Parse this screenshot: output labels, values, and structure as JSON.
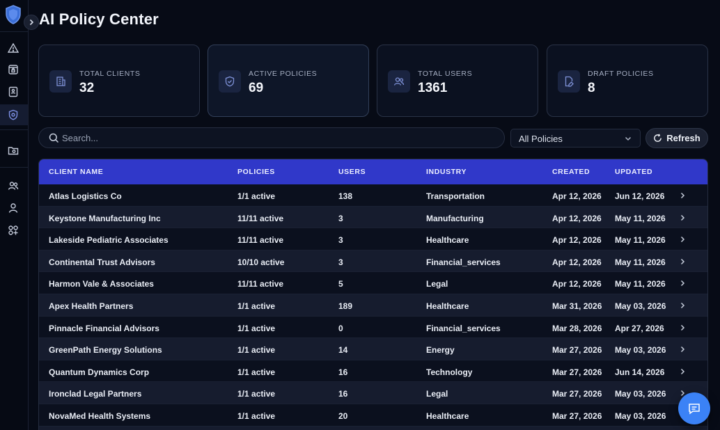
{
  "page": {
    "title": "AI Policy Center"
  },
  "sidebar": {
    "icons": [
      "shield-logo-icon",
      "alert-triangle-icon",
      "lock-window-icon",
      "book-icon",
      "policy-shield-icon",
      "folder-lock-icon",
      "users-icon",
      "user-icon",
      "apps-add-icon"
    ],
    "active": "policy-shield-icon"
  },
  "stats": [
    {
      "label": "Total Clients",
      "value": "32",
      "icon": "building-icon"
    },
    {
      "label": "Active Policies",
      "value": "69",
      "icon": "shield-check-icon"
    },
    {
      "label": "Total Users",
      "value": "1361",
      "icon": "users-icon"
    },
    {
      "label": "Draft Policies",
      "value": "8",
      "icon": "file-edit-icon"
    }
  ],
  "search": {
    "placeholder": "Search...",
    "value": ""
  },
  "filter": {
    "selected": "All Policies"
  },
  "refresh_label": "Refresh",
  "table": {
    "columns": [
      "Client Name",
      "Policies",
      "Users",
      "Industry",
      "Created",
      "Updated"
    ],
    "rows": [
      {
        "name": "Atlas Logistics Co",
        "policies": "1/1 active",
        "users": "138",
        "industry": "Transportation",
        "created": "Apr 12, 2026",
        "updated": "Jun 12, 2026"
      },
      {
        "name": "Keystone Manufacturing Inc",
        "policies": "11/11 active",
        "users": "3",
        "industry": "Manufacturing",
        "created": "Apr 12, 2026",
        "updated": "May 11, 2026"
      },
      {
        "name": "Lakeside Pediatric Associates",
        "policies": "11/11 active",
        "users": "3",
        "industry": "Healthcare",
        "created": "Apr 12, 2026",
        "updated": "May 11, 2026"
      },
      {
        "name": "Continental Trust Advisors",
        "policies": "10/10 active",
        "users": "3",
        "industry": "Financial_services",
        "created": "Apr 12, 2026",
        "updated": "May 11, 2026"
      },
      {
        "name": "Harmon Vale & Associates",
        "policies": "11/11 active",
        "users": "5",
        "industry": "Legal",
        "created": "Apr 12, 2026",
        "updated": "May 11, 2026"
      },
      {
        "name": "Apex Health Partners",
        "policies": "1/1 active",
        "users": "189",
        "industry": "Healthcare",
        "created": "Mar 31, 2026",
        "updated": "May 03, 2026"
      },
      {
        "name": "Pinnacle Financial Advisors",
        "policies": "1/1 active",
        "users": "0",
        "industry": "Financial_services",
        "created": "Mar 28, 2026",
        "updated": "Apr 27, 2026"
      },
      {
        "name": "GreenPath Energy Solutions",
        "policies": "1/1 active",
        "users": "14",
        "industry": "Energy",
        "created": "Mar 27, 2026",
        "updated": "May 03, 2026"
      },
      {
        "name": "Quantum Dynamics Corp",
        "policies": "1/1 active",
        "users": "16",
        "industry": "Technology",
        "created": "Mar 27, 2026",
        "updated": "Jun 14, 2026"
      },
      {
        "name": "Ironclad Legal Partners",
        "policies": "1/1 active",
        "users": "16",
        "industry": "Legal",
        "created": "Mar 27, 2026",
        "updated": "May 03, 2026"
      },
      {
        "name": "NovaMed Health Systems",
        "policies": "1/1 active",
        "users": "20",
        "industry": "Healthcare",
        "created": "Mar 27, 2026",
        "updated": "May 03, 2026"
      },
      {
        "name": "",
        "policies": "",
        "users": "",
        "industry": "",
        "created": "",
        "updated": ""
      }
    ]
  },
  "colors": {
    "accent": "#3038c9",
    "fab": "#3b82f6",
    "background": "#070b16"
  }
}
